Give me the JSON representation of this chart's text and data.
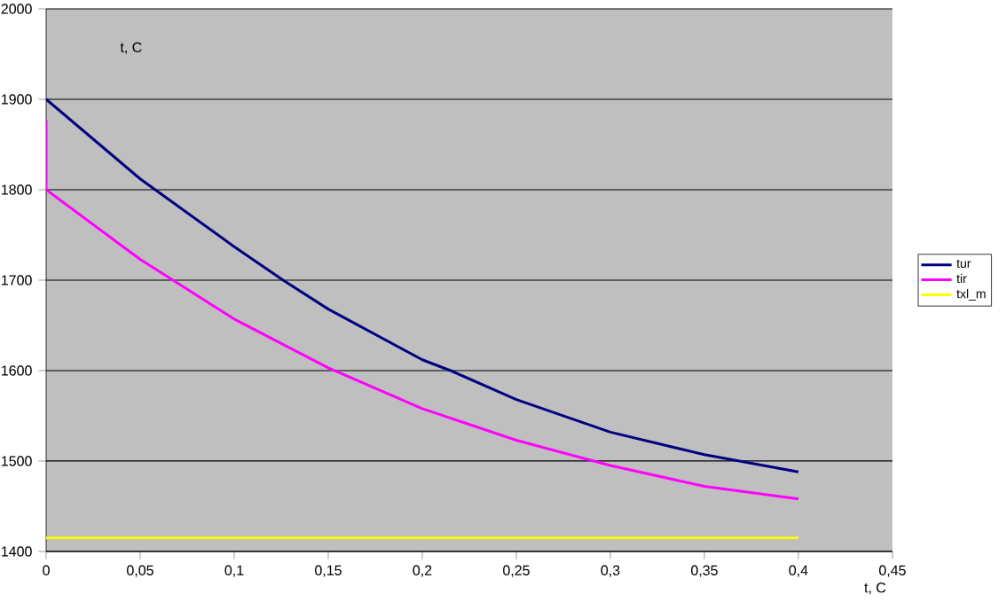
{
  "chart_data": {
    "type": "line",
    "xlabel": "t, C",
    "annotations": [
      "t, C"
    ],
    "xlim": [
      0,
      0.45
    ],
    "ylim": [
      1400,
      2000
    ],
    "xticks": [
      0,
      {
        "value": 0.05,
        "label": "0,05"
      },
      {
        "value": 0.1,
        "label": "0,1"
      },
      {
        "value": 0.15,
        "label": "0,15"
      },
      {
        "value": 0.2,
        "label": "0,2"
      },
      {
        "value": 0.25,
        "label": "0,25"
      },
      {
        "value": 0.3,
        "label": "0,3"
      },
      {
        "value": 0.35,
        "label": "0,35"
      },
      {
        "value": 0.4,
        "label": "0,4"
      },
      {
        "value": 0.45,
        "label": "0,45"
      }
    ],
    "yticks": [
      1400,
      1500,
      1600,
      1700,
      1800,
      1900,
      2000
    ],
    "grid": "y",
    "legend": "right",
    "marker": "none",
    "line_style": "solid",
    "series": [
      {
        "name": "tur",
        "color": "#000080",
        "x": [
          0,
          0.05,
          0.1,
          0.126,
          0.15,
          0.2,
          0.215,
          0.25,
          0.3,
          0.35,
          0.4
        ],
        "values": [
          1900,
          1812,
          1737,
          1700,
          1668,
          1612,
          1600,
          1568,
          1532,
          1507,
          1488
        ]
      },
      {
        "name": "tir",
        "color": "#ff00ff",
        "x": [
          0,
          0,
          0.05,
          0.1,
          0.15,
          0.2,
          0.25,
          0.3,
          0.35,
          0.4
        ],
        "values": [
          1877,
          1800,
          1723,
          1657,
          1603,
          1558,
          1523,
          1495,
          1472,
          1458
        ]
      },
      {
        "name": "txl_m",
        "color": "#ffff00",
        "x": [
          0,
          0.4
        ],
        "values": [
          1415,
          1415
        ]
      }
    ]
  }
}
